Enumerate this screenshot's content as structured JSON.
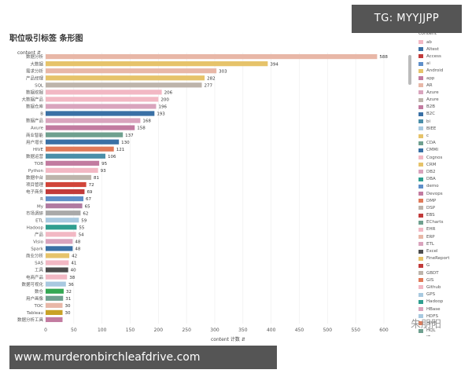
{
  "title": "职位吸引标签 条形图",
  "overlay_tag": "TG: MYYJJPP",
  "footer_url": "www.murderonbirchleafdrive.com",
  "watermark": "朱朋阳",
  "chart_data": {
    "type": "bar",
    "orientation": "horizontal",
    "ylabel": "content ⇵",
    "xlabel": "content 计数 ⇵",
    "xlim": [
      0,
      600
    ],
    "xticks": [
      0,
      50,
      100,
      150,
      200,
      250,
      300,
      350,
      400,
      450,
      500,
      550,
      600
    ],
    "grid": true,
    "categories": [
      "数据分析",
      "大数据",
      "需求分析",
      "产品经理",
      "SQL",
      "数据挖掘",
      "大数据产品",
      "数据仓库",
      "B",
      "数据产品",
      "Axure",
      "商业智能",
      "用户增长",
      "HIVE",
      "数据运营",
      "TOB",
      "Python",
      "数据中台",
      "项目管理",
      "电子商务",
      "R",
      "My",
      "市场调研",
      "ETL",
      "Hadoop",
      "产品",
      "Visio",
      "Spark",
      "商业分析",
      "SAS",
      "工具",
      "电商产品",
      "数据可视化",
      "数仓",
      "用户画像",
      "TOC",
      "Tableau",
      "数据分析工具"
    ],
    "values": [
      588,
      394,
      303,
      282,
      277,
      206,
      200,
      196,
      193,
      168,
      158,
      137,
      130,
      121,
      106,
      95,
      93,
      81,
      72,
      69,
      67,
      65,
      62,
      59,
      55,
      54,
      48,
      48,
      42,
      41,
      40,
      38,
      36,
      32,
      31,
      30,
      30,
      30
    ],
    "colors": [
      "#e8b7a7",
      "#e6c36a",
      "#e8b7a7",
      "#e6c36a",
      "#bdb4ab",
      "#f2b8c4",
      "#f2b8c4",
      "#d9a4bd",
      "#3a70a5",
      "#d9a4bd",
      "#c27ba0",
      "#6fa08f",
      "#3a70a5",
      "#e07a59",
      "#4a8ea8",
      "#c27ba0",
      "#f2b8c4",
      "#bdb4ab",
      "#d1453a",
      "#c23b3b",
      "#5f8fc9",
      "#b07aa1",
      "#a9a9a9",
      "#a8c9e0",
      "#2f9e8f",
      "#f2b8c4",
      "#d9a4bd",
      "#3a70a5",
      "#e6c36a",
      "#f2b8c4",
      "#4d4d4d",
      "#f2b8c4",
      "#a8c9e0",
      "#34a853",
      "#6fa08f",
      "#e8b7a7",
      "#c9a227",
      "#c27ba0"
    ],
    "value_labels_visible_count": 37
  },
  "legend": {
    "title": "content",
    "items": [
      {
        "label": "ab",
        "color": "#f2b8c4"
      },
      {
        "label": "AItest",
        "color": "#3a70a5"
      },
      {
        "label": "Access",
        "color": "#c23b3b"
      },
      {
        "label": "ai",
        "color": "#5f8fc9"
      },
      {
        "label": "Android",
        "color": "#e6c36a"
      },
      {
        "label": "app",
        "color": "#c27ba0"
      },
      {
        "label": "AR",
        "color": "#e8b7a7"
      },
      {
        "label": "Azure",
        "color": "#d9a4bd"
      },
      {
        "label": "Azure",
        "color": "#bdb4ab"
      },
      {
        "label": "B2B",
        "color": "#c27ba0"
      },
      {
        "label": "B2C",
        "color": "#3a70a5"
      },
      {
        "label": "bi",
        "color": "#4a8ea8"
      },
      {
        "label": "BIEE",
        "color": "#a8c9e0"
      },
      {
        "label": "c",
        "color": "#e6c36a"
      },
      {
        "label": "CDA",
        "color": "#6fa08f"
      },
      {
        "label": "CMMI",
        "color": "#3a70a5"
      },
      {
        "label": "Cognos",
        "color": "#f2b8c4"
      },
      {
        "label": "CRM",
        "color": "#e6c36a"
      },
      {
        "label": "DB2",
        "color": "#d9a4bd"
      },
      {
        "label": "DBA",
        "color": "#2f9e8f"
      },
      {
        "label": "demo",
        "color": "#5f8fc9"
      },
      {
        "label": "Devops",
        "color": "#c27ba0"
      },
      {
        "label": "DMP",
        "color": "#e07a59"
      },
      {
        "label": "DSP",
        "color": "#bdb4ab"
      },
      {
        "label": "EBS",
        "color": "#c23b3b"
      },
      {
        "label": "ECharts",
        "color": "#6fa08f"
      },
      {
        "label": "EHR",
        "color": "#f2b8c4"
      },
      {
        "label": "ERP",
        "color": "#e8b7a7"
      },
      {
        "label": "ETL",
        "color": "#d9a4bd"
      },
      {
        "label": "Excel",
        "color": "#4d4d4d"
      },
      {
        "label": "FineReport",
        "color": "#e6c36a"
      },
      {
        "label": "G",
        "color": "#c23b3b"
      },
      {
        "label": "GBDT",
        "color": "#bdb4ab"
      },
      {
        "label": "GIS",
        "color": "#e07a59"
      },
      {
        "label": "Github",
        "color": "#f2b8c4"
      },
      {
        "label": "GPS",
        "color": "#a8c9e0"
      },
      {
        "label": "Hadoop",
        "color": "#2f9e8f"
      },
      {
        "label": "HBase",
        "color": "#d9a4bd"
      },
      {
        "label": "HDFS",
        "color": "#a8c9e0"
      },
      {
        "label": "HIVE",
        "color": "#e07a59"
      },
      {
        "label": "HQL",
        "color": "#6fa08f"
      },
      {
        "label": "IT",
        "color": "#c23b3b"
      }
    ]
  }
}
